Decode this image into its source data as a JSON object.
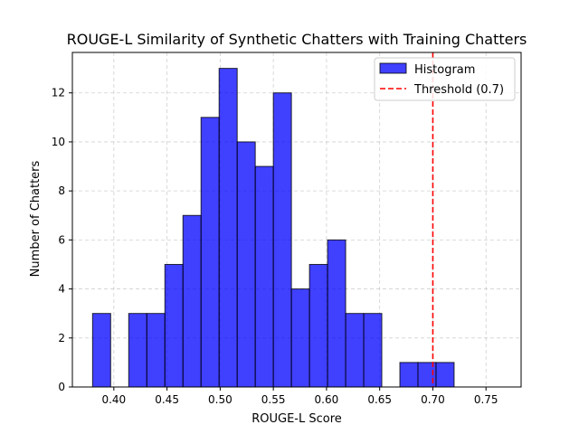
{
  "chart_data": {
    "type": "bar",
    "title": "ROUGE-L Similarity of Synthetic Chatters with Training Chatters",
    "xlabel": "ROUGE-L Score",
    "ylabel": "Number of Chatters",
    "xlim": [
      0.361,
      0.783
    ],
    "ylim": [
      0,
      13.65
    ],
    "x_ticks": [
      0.4,
      0.45,
      0.5,
      0.55,
      0.6,
      0.65,
      0.7,
      0.75
    ],
    "x_tick_labels": [
      "0.40",
      "0.45",
      "0.50",
      "0.55",
      "0.60",
      "0.65",
      "0.70",
      "0.75"
    ],
    "y_ticks": [
      0,
      2,
      4,
      6,
      8,
      10,
      12
    ],
    "y_tick_labels": [
      "0",
      "2",
      "4",
      "6",
      "8",
      "10",
      "12"
    ],
    "grid": true,
    "legend_position": "top-right",
    "series": [
      {
        "name": "Histogram",
        "color": "#0000ff",
        "bins": [
          [
            0.38,
            0.397,
            3
          ],
          [
            0.397,
            0.414,
            0
          ],
          [
            0.414,
            0.431,
            3
          ],
          [
            0.431,
            0.448,
            3
          ],
          [
            0.448,
            0.465,
            5
          ],
          [
            0.465,
            0.482,
            7
          ],
          [
            0.482,
            0.499,
            11
          ],
          [
            0.499,
            0.516,
            13
          ],
          [
            0.516,
            0.533,
            10
          ],
          [
            0.533,
            0.55,
            9
          ],
          [
            0.55,
            0.567,
            12
          ],
          [
            0.567,
            0.584,
            4
          ],
          [
            0.584,
            0.601,
            5
          ],
          [
            0.601,
            0.618,
            6
          ],
          [
            0.618,
            0.635,
            3
          ],
          [
            0.635,
            0.652,
            3
          ],
          [
            0.652,
            0.669,
            0
          ],
          [
            0.669,
            0.686,
            1
          ],
          [
            0.686,
            0.703,
            1
          ],
          [
            0.703,
            0.72,
            1
          ]
        ]
      }
    ],
    "threshold": {
      "name": "Threshold (0.7)",
      "x": 0.7,
      "color": "#ff0000"
    }
  }
}
